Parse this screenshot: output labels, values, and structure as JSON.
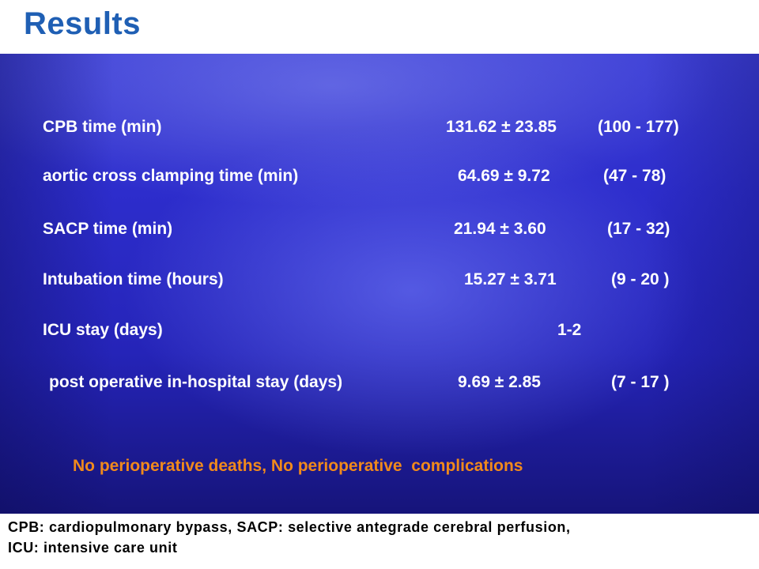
{
  "title": "Results",
  "rows": [
    {
      "label": "CPB time (min)",
      "value": "131.62 ± 23.85",
      "range": "(100 - 177)"
    },
    {
      "label": "aortic cross clamping time (min)",
      "value": "64.69 ± 9.72",
      "range": "(47 - 78)"
    },
    {
      "label": "SACP time (min)",
      "value": "21.94 ± 3.60",
      "range": "(17 - 32)"
    },
    {
      "label": "Intubation time (hours)",
      "value": "15.27 ± 3.71",
      "range": "(9 - 20 )"
    },
    {
      "label": "ICU stay (days)",
      "value": "1-2",
      "range": ""
    },
    {
      "label": "post operative in-hospital stay (days)",
      "value": "9.69 ± 2.85",
      "range": "(7 - 17 )"
    }
  ],
  "outcome": "No perioperative deaths, No perioperative  complications",
  "abbreviations_line1": "CPB: cardiopulmonary bypass, SACP: selective antegrade cerebral perfusion,",
  "abbreviations_line2": "ICU: intensive care unit",
  "colors": {
    "title": "#1f5fb4",
    "panel": "#2d2dcc",
    "outcome": "#f08a1c"
  }
}
